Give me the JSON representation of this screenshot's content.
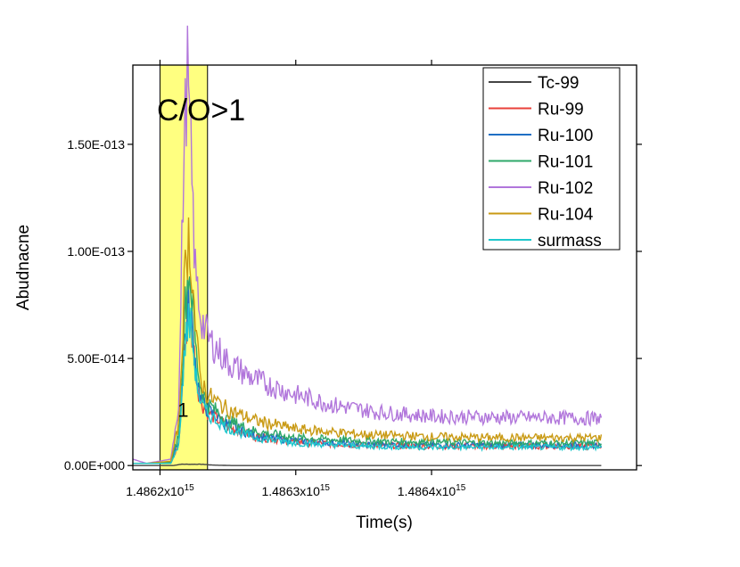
{
  "chart_data": {
    "type": "line",
    "title": "",
    "xlabel": "Time(s)",
    "ylabel": "Abudnacne",
    "xlim": [
      1486180000000000.0,
      1486551000000000.0
    ],
    "ylim": [
      -2e-15,
      1.87e-13
    ],
    "x_ticks": [
      {
        "value": 1486200000000000.0,
        "mantissa": "1.4862x10",
        "exponent": "15"
      },
      {
        "value": 1486300000000000.0,
        "mantissa": "1.4863x10",
        "exponent": "15"
      },
      {
        "value": 1486400000000000.0,
        "mantissa": "1.4864x10",
        "exponent": "15"
      }
    ],
    "y_ticks": [
      {
        "value": 0,
        "label": "0.00E+000"
      },
      {
        "value": 5e-14,
        "label": "5.00E-014"
      },
      {
        "value": 1e-13,
        "label": "1.00E-013"
      },
      {
        "value": 1.5e-13,
        "label": "1.50E-013"
      }
    ],
    "highlight_band": {
      "x": [
        1486200000000000.0,
        1486235000000000.0
      ],
      "color": "#ffff80",
      "label": "C/O>1"
    },
    "annotations": [
      {
        "text": "1",
        "x": 1486217000000000.0,
        "y": 2.6e-14
      }
    ],
    "legend_position": "top-right",
    "grid": false,
    "series": [
      {
        "name": "Tc-99",
        "color": "#444444",
        "points": [
          [
            1486180000000000.0,
            0
          ],
          [
            1486210000000000.0,
            0
          ],
          [
            1486215000000000.0,
            6e-16
          ],
          [
            1486230000000000.0,
            6e-16
          ],
          [
            1486240000000000.0,
            2e-16
          ],
          [
            1486253000000000.0,
            0
          ],
          [
            1486450000000000.0,
            0
          ],
          [
            1486525000000000.0,
            0
          ]
        ]
      },
      {
        "name": "Ru-99",
        "color": "#e8403a",
        "points": [
          [
            1486180000000000.0,
            1e-15
          ],
          [
            1486190000000000.0,
            1e-15
          ],
          [
            1486208000000000.0,
            1e-15
          ],
          [
            1486214000000000.0,
            1e-14
          ],
          [
            1486218000000000.0,
            5.5e-14
          ],
          [
            1486221000000000.0,
            7e-14
          ],
          [
            1486223000000000.0,
            6.6e-14
          ],
          [
            1486227000000000.0,
            4e-14
          ],
          [
            1486230000000000.0,
            3e-14
          ],
          [
            1486235000000000.0,
            2.5e-14
          ],
          [
            1486250000000000.0,
            1.8e-14
          ],
          [
            1486270000000000.0,
            1.35e-14
          ],
          [
            1486300000000000.0,
            1.1e-14
          ],
          [
            1486350000000000.0,
            9.5e-15
          ],
          [
            1486400000000000.0,
            9e-15
          ],
          [
            1486450000000000.0,
            9e-15
          ],
          [
            1486525000000000.0,
            9e-15
          ]
        ]
      },
      {
        "name": "Ru-100",
        "color": "#1f6fc4",
        "points": [
          [
            1486180000000000.0,
            1e-15
          ],
          [
            1486190000000000.0,
            1e-15
          ],
          [
            1486208000000000.0,
            1e-15
          ],
          [
            1486214000000000.0,
            1.2e-14
          ],
          [
            1486218000000000.0,
            5.8e-14
          ],
          [
            1486221000000000.0,
            7.4e-14
          ],
          [
            1486223000000000.0,
            6.9e-14
          ],
          [
            1486227000000000.0,
            4.2e-14
          ],
          [
            1486230000000000.0,
            3.1e-14
          ],
          [
            1486235000000000.0,
            2.6e-14
          ],
          [
            1486250000000000.0,
            1.9e-14
          ],
          [
            1486270000000000.0,
            1.4e-14
          ],
          [
            1486300000000000.0,
            1.15e-14
          ],
          [
            1486350000000000.0,
            1e-14
          ],
          [
            1486400000000000.0,
            9.5e-15
          ],
          [
            1486450000000000.0,
            9.5e-15
          ],
          [
            1486525000000000.0,
            9.5e-15
          ]
        ]
      },
      {
        "name": "Ru-101",
        "color": "#2ea86a",
        "points": [
          [
            1486180000000000.0,
            1e-15
          ],
          [
            1486190000000000.0,
            1e-15
          ],
          [
            1486208000000000.0,
            1.5e-15
          ],
          [
            1486214000000000.0,
            1.5e-14
          ],
          [
            1486218000000000.0,
            7e-14
          ],
          [
            1486221000000000.0,
            9.2e-14
          ],
          [
            1486223000000000.0,
            8.4e-14
          ],
          [
            1486227000000000.0,
            5e-14
          ],
          [
            1486230000000000.0,
            3.6e-14
          ],
          [
            1486235000000000.0,
            2.9e-14
          ],
          [
            1486250000000000.0,
            2.1e-14
          ],
          [
            1486270000000000.0,
            1.6e-14
          ],
          [
            1486300000000000.0,
            1.3e-14
          ],
          [
            1486350000000000.0,
            1.15e-14
          ],
          [
            1486400000000000.0,
            1.1e-14
          ],
          [
            1486450000000000.0,
            1.05e-14
          ],
          [
            1486525000000000.0,
            1.05e-14
          ]
        ]
      },
      {
        "name": "Ru-102",
        "color": "#b176db",
        "points": [
          [
            1486180000000000.0,
            3e-15
          ],
          [
            1486190000000000.0,
            1e-15
          ],
          [
            1486208000000000.0,
            3e-15
          ],
          [
            1486214000000000.0,
            3e-14
          ],
          [
            1486217000000000.0,
            1.3e-13
          ],
          [
            1486220000000000.0,
            1.86e-13
          ],
          [
            1486223000000000.0,
            1.4e-13
          ],
          [
            1486226000000000.0,
            9e-14
          ],
          [
            1486230000000000.0,
            7e-14
          ],
          [
            1486235000000000.0,
            6e-14
          ],
          [
            1486250000000000.0,
            4.8e-14
          ],
          [
            1486270000000000.0,
            4e-14
          ],
          [
            1486300000000000.0,
            3.3e-14
          ],
          [
            1486330000000000.0,
            2.8e-14
          ],
          [
            1486360000000000.0,
            2.5e-14
          ],
          [
            1486400000000000.0,
            2.3e-14
          ],
          [
            1486450000000000.0,
            2.25e-14
          ],
          [
            1486525000000000.0,
            2.2e-14
          ]
        ]
      },
      {
        "name": "Ru-104",
        "color": "#c99a14",
        "points": [
          [
            1486180000000000.0,
            1e-15
          ],
          [
            1486190000000000.0,
            1e-15
          ],
          [
            1486208000000000.0,
            2e-15
          ],
          [
            1486214000000000.0,
            2e-14
          ],
          [
            1486218000000000.0,
            8.5e-14
          ],
          [
            1486221000000000.0,
            1.07e-13
          ],
          [
            1486223000000000.0,
            9.6e-14
          ],
          [
            1486227000000000.0,
            5.6e-14
          ],
          [
            1486230000000000.0,
            4e-14
          ],
          [
            1486235000000000.0,
            3.3e-14
          ],
          [
            1486250000000000.0,
            2.6e-14
          ],
          [
            1486270000000000.0,
            2.1e-14
          ],
          [
            1486300000000000.0,
            1.7e-14
          ],
          [
            1486350000000000.0,
            1.45e-14
          ],
          [
            1486400000000000.0,
            1.35e-14
          ],
          [
            1486450000000000.0,
            1.3e-14
          ],
          [
            1486525000000000.0,
            1.3e-14
          ]
        ]
      },
      {
        "name": "surmass",
        "color": "#1ec8cc",
        "points": [
          [
            1486180000000000.0,
            1e-15
          ],
          [
            1486190000000000.0,
            1e-15
          ],
          [
            1486208000000000.0,
            1e-15
          ],
          [
            1486214000000000.0,
            1e-14
          ],
          [
            1486218000000000.0,
            5.3e-14
          ],
          [
            1486221000000000.0,
            6.8e-14
          ],
          [
            1486223000000000.0,
            6.4e-14
          ],
          [
            1486227000000000.0,
            3.9e-14
          ],
          [
            1486230000000000.0,
            2.9e-14
          ],
          [
            1486235000000000.0,
            2.4e-14
          ],
          [
            1486250000000000.0,
            1.75e-14
          ],
          [
            1486270000000000.0,
            1.3e-14
          ],
          [
            1486300000000000.0,
            1.05e-14
          ],
          [
            1486350000000000.0,
            9e-15
          ],
          [
            1486400000000000.0,
            8.5e-15
          ],
          [
            1486450000000000.0,
            8.5e-15
          ],
          [
            1486525000000000.0,
            8.5e-15
          ]
        ]
      }
    ]
  }
}
